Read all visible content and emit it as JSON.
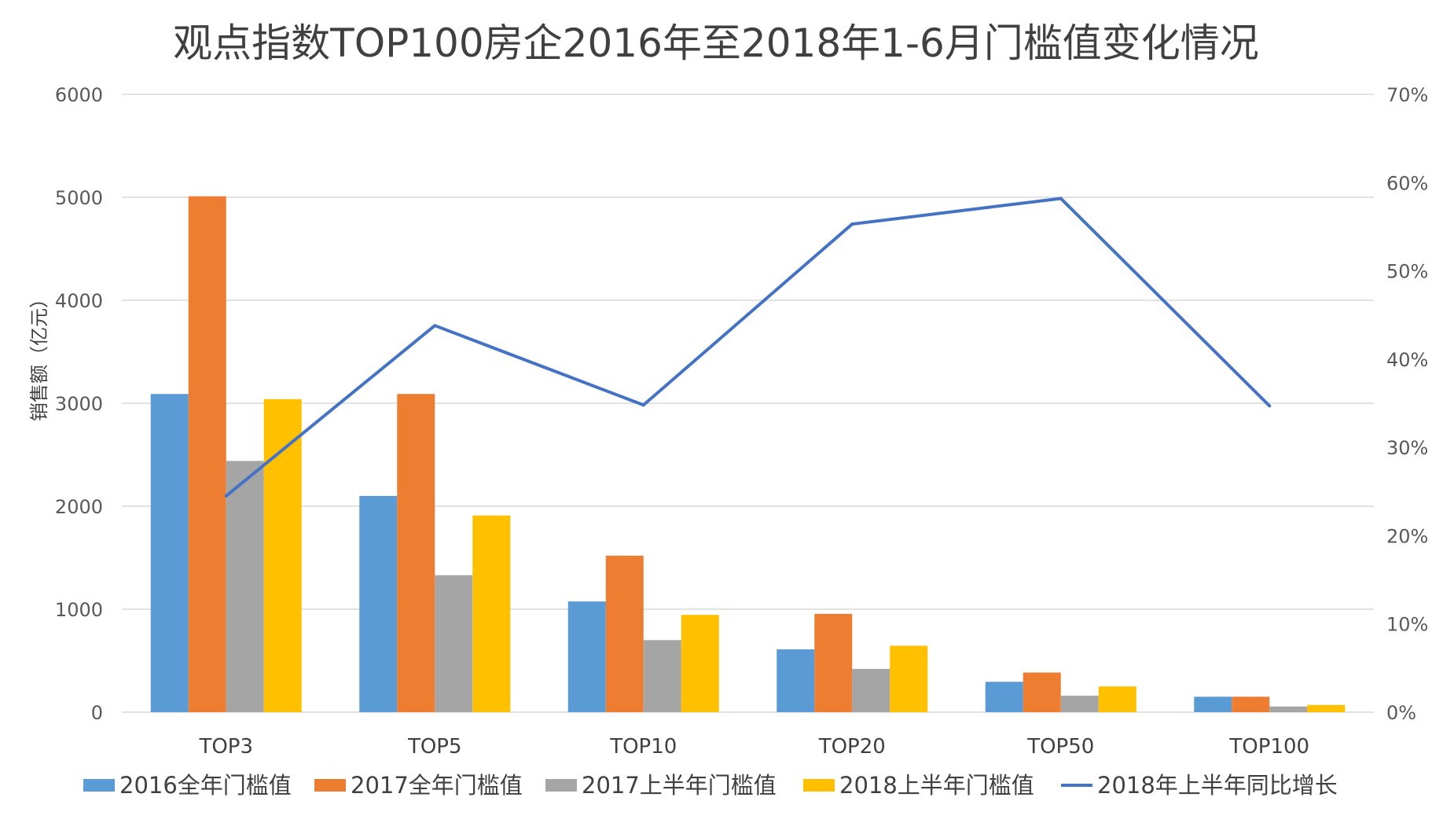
{
  "chart_data": {
    "type": "bar",
    "title": "观点指数TOP100房企2016年至2018年1-6月门槛值变化情况",
    "ylabel": "销售额（亿元）",
    "xlabel": "",
    "categories": [
      "TOP3",
      "TOP5",
      "TOP10",
      "TOP20",
      "TOP50",
      "TOP100"
    ],
    "ylim": [
      0,
      6000
    ],
    "yticks": [
      "6000",
      "5000",
      "4000",
      "3000",
      "2000",
      "1000",
      "0"
    ],
    "y2lim": [
      0,
      0.7
    ],
    "y2ticks": [
      "70%",
      "60%",
      "50%",
      "40%",
      "30%",
      "20%",
      "10%",
      "0%"
    ],
    "grid": true,
    "legend_position": "bottom",
    "series": [
      {
        "name": "2016全年门槛值",
        "type": "bar",
        "color": "#5b9bd5",
        "values": [
          3090,
          2100,
          1075,
          610,
          295,
          150
        ]
      },
      {
        "name": "2017全年门槛值",
        "type": "bar",
        "color": "#ed7d31",
        "values": [
          5010,
          3090,
          1520,
          955,
          385,
          150
        ]
      },
      {
        "name": "2017上半年门槛值",
        "type": "bar",
        "color": "#a5a5a5",
        "values": [
          2440,
          1330,
          700,
          420,
          160,
          55
        ]
      },
      {
        "name": "2018上半年门槛值",
        "type": "bar",
        "color": "#ffc000",
        "values": [
          3040,
          1910,
          945,
          645,
          250,
          70
        ]
      },
      {
        "name": "2018年上半年同比增长",
        "type": "line",
        "axis": "secondary",
        "color": "#4472c4",
        "values": [
          0.245,
          0.438,
          0.348,
          0.553,
          0.582,
          0.347
        ]
      }
    ]
  }
}
